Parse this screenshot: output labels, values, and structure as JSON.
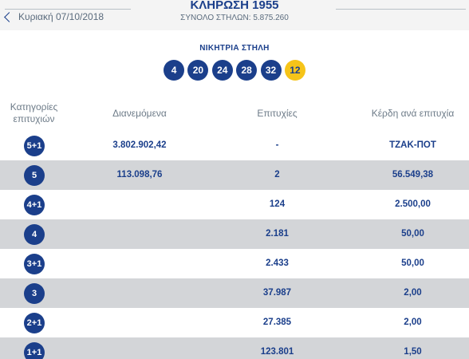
{
  "header": {
    "prev_date": "Κυριακή 07/10/2018",
    "title": "ΚΛΗΡΩΣΗ 1955",
    "columns_total": "ΣΥΝΟΛΟ ΣΤΗΛΩΝ: 5.875.260"
  },
  "winning": {
    "label": "ΝΙΚΗΤΡΙΑ ΣΤΗΛΗ",
    "numbers": [
      "4",
      "20",
      "24",
      "28",
      "32"
    ],
    "joker": "12",
    "colors": {
      "number_ball": "#1b3f8b",
      "joker_ball": "#f6c419"
    }
  },
  "table": {
    "headers": {
      "category": "Κατηγορίες επιτυχιών",
      "distributed": "Διανεμόμενα",
      "winners": "Επιτυχίες",
      "prize": "Κέρδη ανά επιτυχία"
    },
    "rows": [
      {
        "category": "5+1",
        "distributed": "3.802.902,42",
        "winners": "-",
        "prize": "ΤΖΑΚ-ΠΟΤ"
      },
      {
        "category": "5",
        "distributed": "113.098,76",
        "winners": "2",
        "prize": "56.549,38"
      },
      {
        "category": "4+1",
        "distributed": "",
        "winners": "124",
        "prize": "2.500,00"
      },
      {
        "category": "4",
        "distributed": "",
        "winners": "2.181",
        "prize": "50,00"
      },
      {
        "category": "3+1",
        "distributed": "",
        "winners": "2.433",
        "prize": "50,00"
      },
      {
        "category": "3",
        "distributed": "",
        "winners": "37.987",
        "prize": "2,00"
      },
      {
        "category": "2+1",
        "distributed": "",
        "winners": "27.385",
        "prize": "2,00"
      },
      {
        "category": "1+1",
        "distributed": "",
        "winners": "123.801",
        "prize": "1,50"
      }
    ]
  }
}
